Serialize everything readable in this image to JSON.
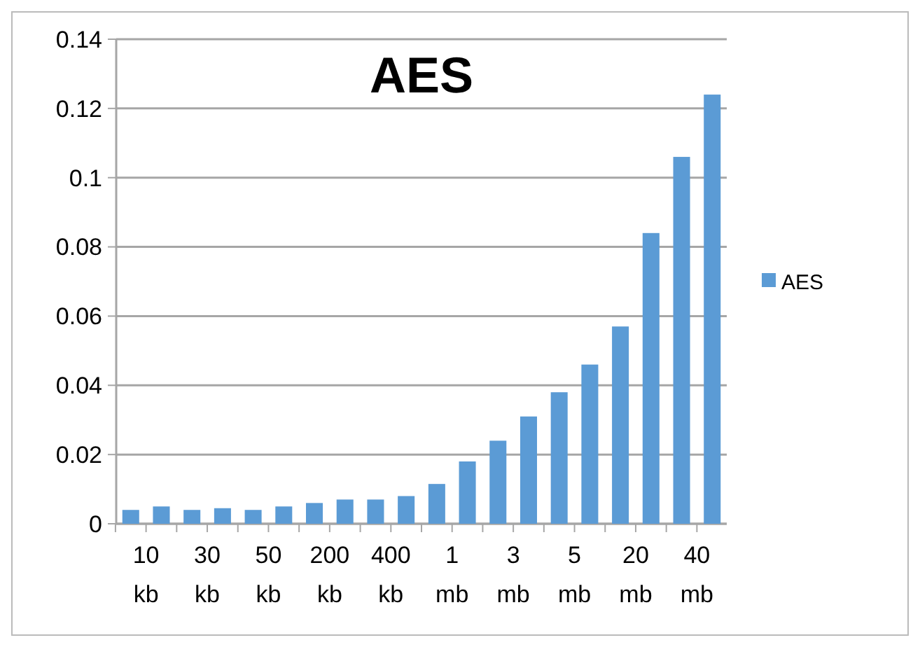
{
  "chart_data": {
    "type": "bar",
    "title": "AES",
    "categories": [
      "10 kb",
      null,
      "30 kb",
      null,
      "50 kb",
      null,
      "200 kb",
      null,
      "400 kb",
      null,
      "1 mb",
      null,
      "3 mb",
      null,
      "5 mb",
      null,
      "20 mb",
      null,
      "40 mb",
      null
    ],
    "series": [
      {
        "name": "AES",
        "color": "#5b9bd5",
        "values": [
          0.004,
          0.005,
          0.004,
          0.0045,
          0.004,
          0.005,
          0.006,
          0.007,
          0.007,
          0.008,
          0.0115,
          0.018,
          0.024,
          0.031,
          0.038,
          0.046,
          0.057,
          0.084,
          0.106,
          0.124
        ]
      }
    ],
    "ylim": [
      0,
      0.14
    ],
    "yticks": [
      0,
      0.02,
      0.04,
      0.06,
      0.08,
      0.1,
      0.12,
      0.14
    ],
    "grid": "y",
    "legend": "right"
  }
}
